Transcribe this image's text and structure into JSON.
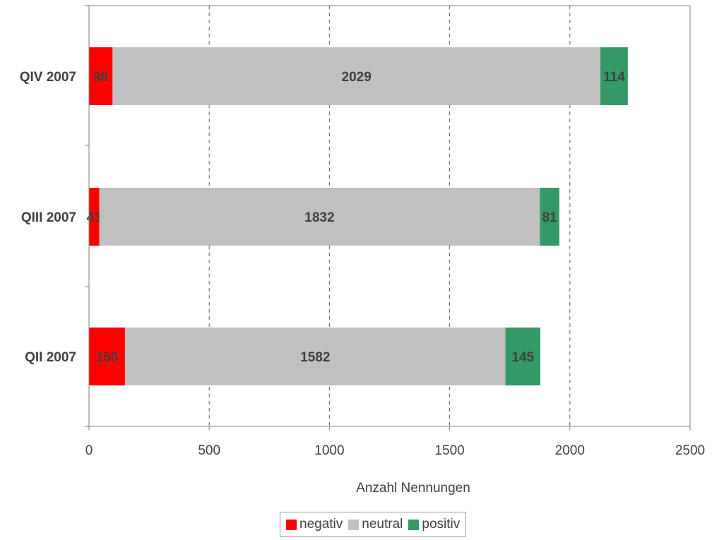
{
  "chart_data": {
    "type": "bar",
    "orientation": "horizontal",
    "stacked": true,
    "categories": [
      "QIV 2007",
      "QIII 2007",
      "QII 2007"
    ],
    "series": [
      {
        "name": "negativ",
        "color": "#ff0000",
        "values": [
          98,
          43,
          150
        ]
      },
      {
        "name": "neutral",
        "color": "#c0c0c0",
        "values": [
          2029,
          1832,
          1582
        ]
      },
      {
        "name": "positiv",
        "color": "#339966",
        "values": [
          114,
          81,
          145
        ]
      }
    ],
    "xlabel": "Anzahl Nennungen",
    "ylabel": "",
    "xlim": [
      0,
      2500
    ],
    "xticks": [
      "0",
      "500",
      "1000",
      "1500",
      "2000",
      "2500"
    ],
    "grid": "vertical dashed",
    "legend_position": "bottom"
  }
}
